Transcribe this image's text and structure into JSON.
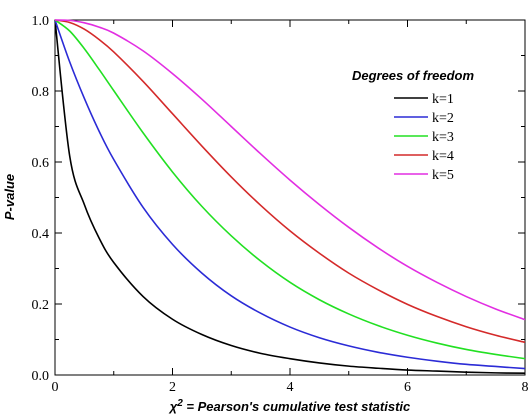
{
  "chart_data": {
    "type": "line",
    "title": "",
    "xlabel": "χ² = Pearson's cumulative test statistic",
    "xlabel_parts": {
      "symbol": "χ",
      "superscript": "2",
      "rest": " = Pearson's cumulative test statistic"
    },
    "ylabel": "P-value",
    "xlim": [
      0,
      8
    ],
    "ylim": [
      0,
      1.0
    ],
    "x_ticks": [
      0,
      2,
      4,
      6,
      8
    ],
    "y_ticks": [
      0.0,
      0.2,
      0.4,
      0.6,
      0.8,
      1.0
    ],
    "x_tick_labels": [
      "0",
      "2",
      "4",
      "6",
      "8"
    ],
    "y_tick_labels": [
      "0.0",
      "0.2",
      "0.4",
      "0.6",
      "0.8",
      "1.0"
    ],
    "grid": false,
    "legend": {
      "title": "Degrees of freedom",
      "position": "top-right"
    },
    "x": [
      0,
      0.25,
      0.5,
      0.75,
      1,
      1.5,
      2,
      2.5,
      3,
      3.5,
      4,
      4.5,
      5,
      5.5,
      6,
      6.5,
      7,
      7.5,
      8
    ],
    "series": [
      {
        "name": "k=1",
        "color": "#000000",
        "values": [
          1.0,
          0.617,
          0.48,
          0.386,
          0.317,
          0.221,
          0.157,
          0.114,
          0.083,
          0.061,
          0.046,
          0.034,
          0.025,
          0.019,
          0.014,
          0.011,
          0.008,
          0.006,
          0.005
        ]
      },
      {
        "name": "k=2",
        "color": "#2b2bd6",
        "values": [
          1.0,
          0.882,
          0.779,
          0.687,
          0.607,
          0.472,
          0.368,
          0.287,
          0.223,
          0.174,
          0.135,
          0.105,
          0.082,
          0.064,
          0.05,
          0.039,
          0.03,
          0.024,
          0.018
        ]
      },
      {
        "name": "k=3",
        "color": "#22e022",
        "values": [
          1.0,
          0.969,
          0.919,
          0.861,
          0.801,
          0.682,
          0.572,
          0.475,
          0.392,
          0.321,
          0.261,
          0.212,
          0.172,
          0.139,
          0.112,
          0.09,
          0.072,
          0.058,
          0.046
        ]
      },
      {
        "name": "k=4",
        "color": "#d42a2a",
        "values": [
          1.0,
          0.993,
          0.974,
          0.945,
          0.91,
          0.827,
          0.736,
          0.645,
          0.558,
          0.478,
          0.406,
          0.343,
          0.287,
          0.24,
          0.199,
          0.165,
          0.136,
          0.112,
          0.092
        ]
      },
      {
        "name": "k=5",
        "color": "#e22ee2",
        "values": [
          1.0,
          0.999,
          0.992,
          0.98,
          0.963,
          0.913,
          0.849,
          0.777,
          0.7,
          0.623,
          0.549,
          0.48,
          0.416,
          0.358,
          0.306,
          0.261,
          0.221,
          0.186,
          0.156
        ]
      }
    ]
  }
}
